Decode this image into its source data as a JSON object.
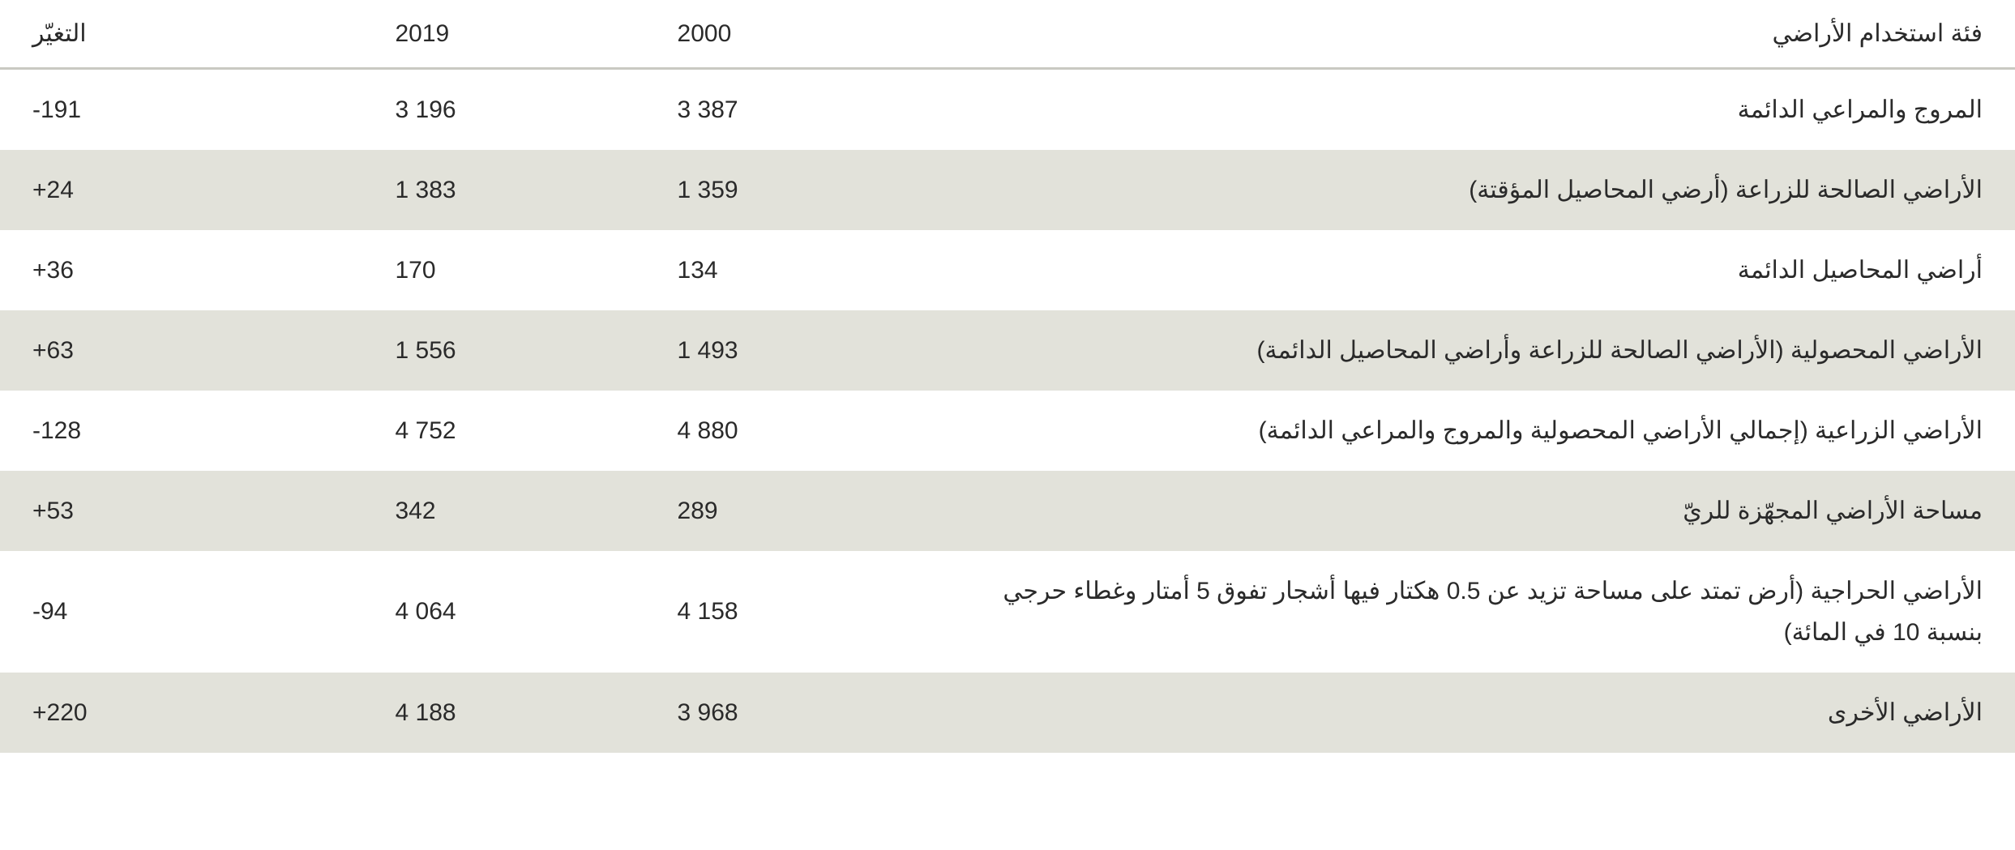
{
  "table": {
    "type": "table",
    "direction": "rtl",
    "background_color": "#ffffff",
    "stripe_color": "#e2e2da",
    "header_border_color": "#c9c9c2",
    "text_color": "#2a2a2a",
    "font_size_pt": 22,
    "columns": [
      {
        "key": "category",
        "label": "فئة استخدام الأراضي",
        "align": "right",
        "width_pct": 54
      },
      {
        "key": "y2000",
        "label": "2000",
        "align": "left",
        "width_pct": 14
      },
      {
        "key": "y2019",
        "label": "2019",
        "align": "left",
        "width_pct": 14
      },
      {
        "key": "change",
        "label": "التغيّر",
        "align": "left",
        "width_pct": 18
      }
    ],
    "rows": [
      {
        "category": "المروج والمراعي الدائمة",
        "y2000": "3 387",
        "y2019": "3 196",
        "change": "-191"
      },
      {
        "category": "الأراضي الصالحة للزراعة (أرضي المحاصيل المؤقتة)",
        "y2000": "1 359",
        "y2019": "1 383",
        "change": "+24"
      },
      {
        "category": "أراضي المحاصيل الدائمة",
        "y2000": "134",
        "y2019": "170",
        "change": "+36"
      },
      {
        "category": "الأراضي المحصولية (الأراضي الصالحة للزراعة وأراضي المحاصيل الدائمة)",
        "y2000": "1 493",
        "y2019": "1 556",
        "change": "+63"
      },
      {
        "category": "الأراضي الزراعية (إجمالي الأراضي المحصولية والمروج والمراعي الدائمة)",
        "y2000": "4 880",
        "y2019": "4 752",
        "change": "-128"
      },
      {
        "category": "مساحة الأراضي المجهّزة للريّ",
        "y2000": "289",
        "y2019": "342",
        "change": "+53"
      },
      {
        "category": "الأراضي الحراجية  (أرض تمتد على مساحة تزيد عن 0.5 هكتار فيها أشجار تفوق 5 أمتار وغطاء حرجي بنسبة 10 في المائة)",
        "y2000": "4 158",
        "y2019": "4 064",
        "change": "-94"
      },
      {
        "category": "الأراضي الأخرى",
        "y2000": "3 968",
        "y2019": "4 188",
        "change": "+220"
      }
    ]
  }
}
